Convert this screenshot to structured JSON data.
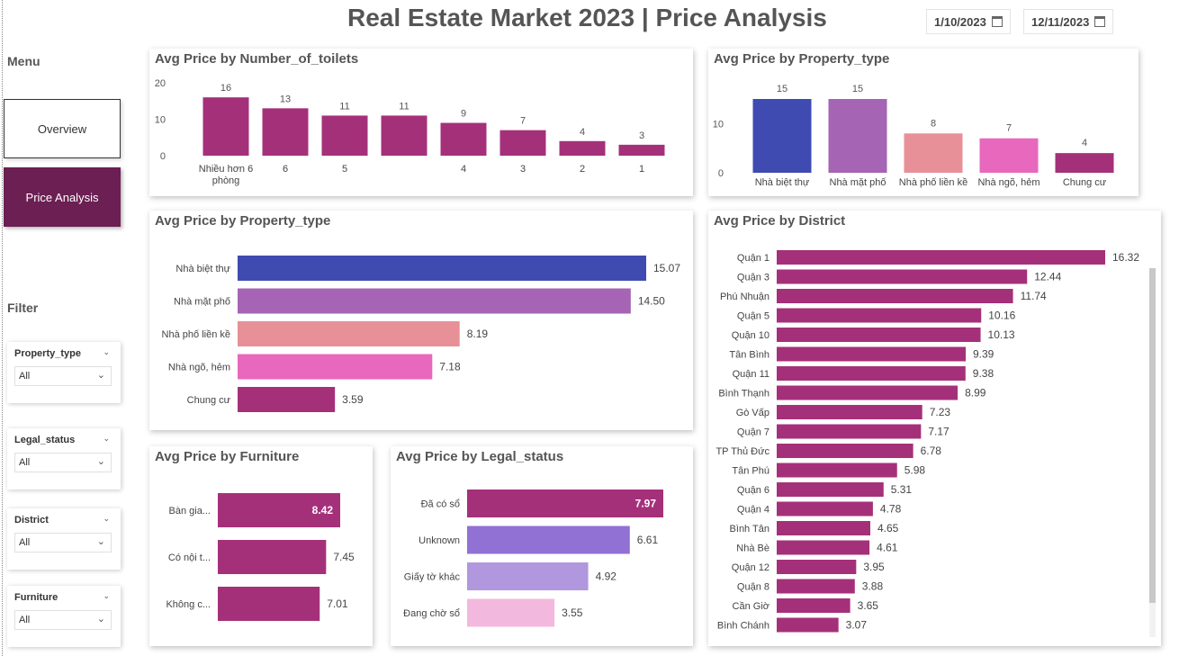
{
  "header": {
    "title": "Real Estate Market 2023 | Price Analysis",
    "date_from": "1/10/2023",
    "date_to": "12/11/2023"
  },
  "menu": {
    "label": "Menu",
    "items": [
      {
        "label": "Overview"
      },
      {
        "label": "Price Analysis"
      }
    ]
  },
  "filter": {
    "label": "Filter",
    "slicers": [
      {
        "title": "Property_type",
        "value": "All"
      },
      {
        "title": "Legal_status",
        "value": "All"
      },
      {
        "title": "District",
        "value": "All"
      },
      {
        "title": "Furniture",
        "value": "All"
      }
    ]
  },
  "colors": {
    "magenta": "#a5307a",
    "blue": "#3f4bb0",
    "purple": "#a564b4",
    "salmon": "#e79098",
    "pink": "#e868bd",
    "lavender": "#9271d4",
    "light_lavender": "#b197de",
    "light_pink": "#f3b8dd"
  },
  "chart_data": [
    {
      "id": "toilets",
      "type": "bar",
      "title": "Avg Price by Number_of_toilets",
      "categories": [
        "Nhiều hơn 6 phòng",
        "6",
        "5",
        "",
        "4",
        "3",
        "2",
        "1"
      ],
      "values": [
        16,
        13,
        11,
        11,
        9,
        7,
        4,
        3
      ],
      "yticks": [
        0,
        10,
        20
      ],
      "ylim": [
        0,
        20
      ]
    },
    {
      "id": "ptype_col",
      "type": "bar",
      "title": "Avg Price by Property_type",
      "categories": [
        "Nhà biệt thự",
        "Nhà mặt phố",
        "Nhà phố liền kề",
        "Nhà ngõ, hẻm",
        "Chung cư"
      ],
      "values": [
        15,
        15,
        8,
        7,
        4
      ],
      "yticks": [
        0,
        10
      ],
      "ylim": [
        0,
        17
      ]
    },
    {
      "id": "ptype_bar",
      "type": "bar",
      "orientation": "horizontal",
      "title": "Avg Price by Property_type",
      "categories": [
        "Nhà biệt thự",
        "Nhà mặt phố",
        "Nhà phố liền kề",
        "Nhà ngõ, hẻm",
        "Chung cư"
      ],
      "values": [
        15.07,
        14.5,
        8.19,
        7.18,
        3.59
      ]
    },
    {
      "id": "furniture",
      "type": "bar",
      "orientation": "horizontal",
      "title": "Avg Price by Furniture",
      "categories": [
        "Bàn gia...",
        "Có nội t...",
        "Không c..."
      ],
      "values": [
        8.42,
        7.45,
        7.01
      ]
    },
    {
      "id": "legal",
      "type": "bar",
      "orientation": "horizontal",
      "title": "Avg Price by Legal_status",
      "categories": [
        "Đã có sổ",
        "Unknown",
        "Giấy tờ khác",
        "Đang chờ sổ"
      ],
      "values": [
        7.97,
        6.61,
        4.92,
        3.55
      ]
    },
    {
      "id": "district",
      "type": "bar",
      "orientation": "horizontal",
      "title": "Avg Price by District",
      "categories": [
        "Quận 1",
        "Quận 3",
        "Phú Nhuận",
        "Quận 5",
        "Quận 10",
        "Tân Bình",
        "Quận 11",
        "Bình Thạnh",
        "Gò Vấp",
        "Quận 7",
        "TP Thủ Đức",
        "Tân Phú",
        "Quận 6",
        "Quận 4",
        "Bình Tân",
        "Nhà Bè",
        "Quận 12",
        "Quận 8",
        "Cần Giờ",
        "Bình Chánh"
      ],
      "values": [
        16.32,
        12.44,
        11.74,
        10.16,
        10.13,
        9.39,
        9.38,
        8.99,
        7.23,
        7.17,
        6.78,
        5.98,
        5.31,
        4.78,
        4.65,
        4.61,
        3.95,
        3.88,
        3.65,
        3.07
      ]
    }
  ]
}
